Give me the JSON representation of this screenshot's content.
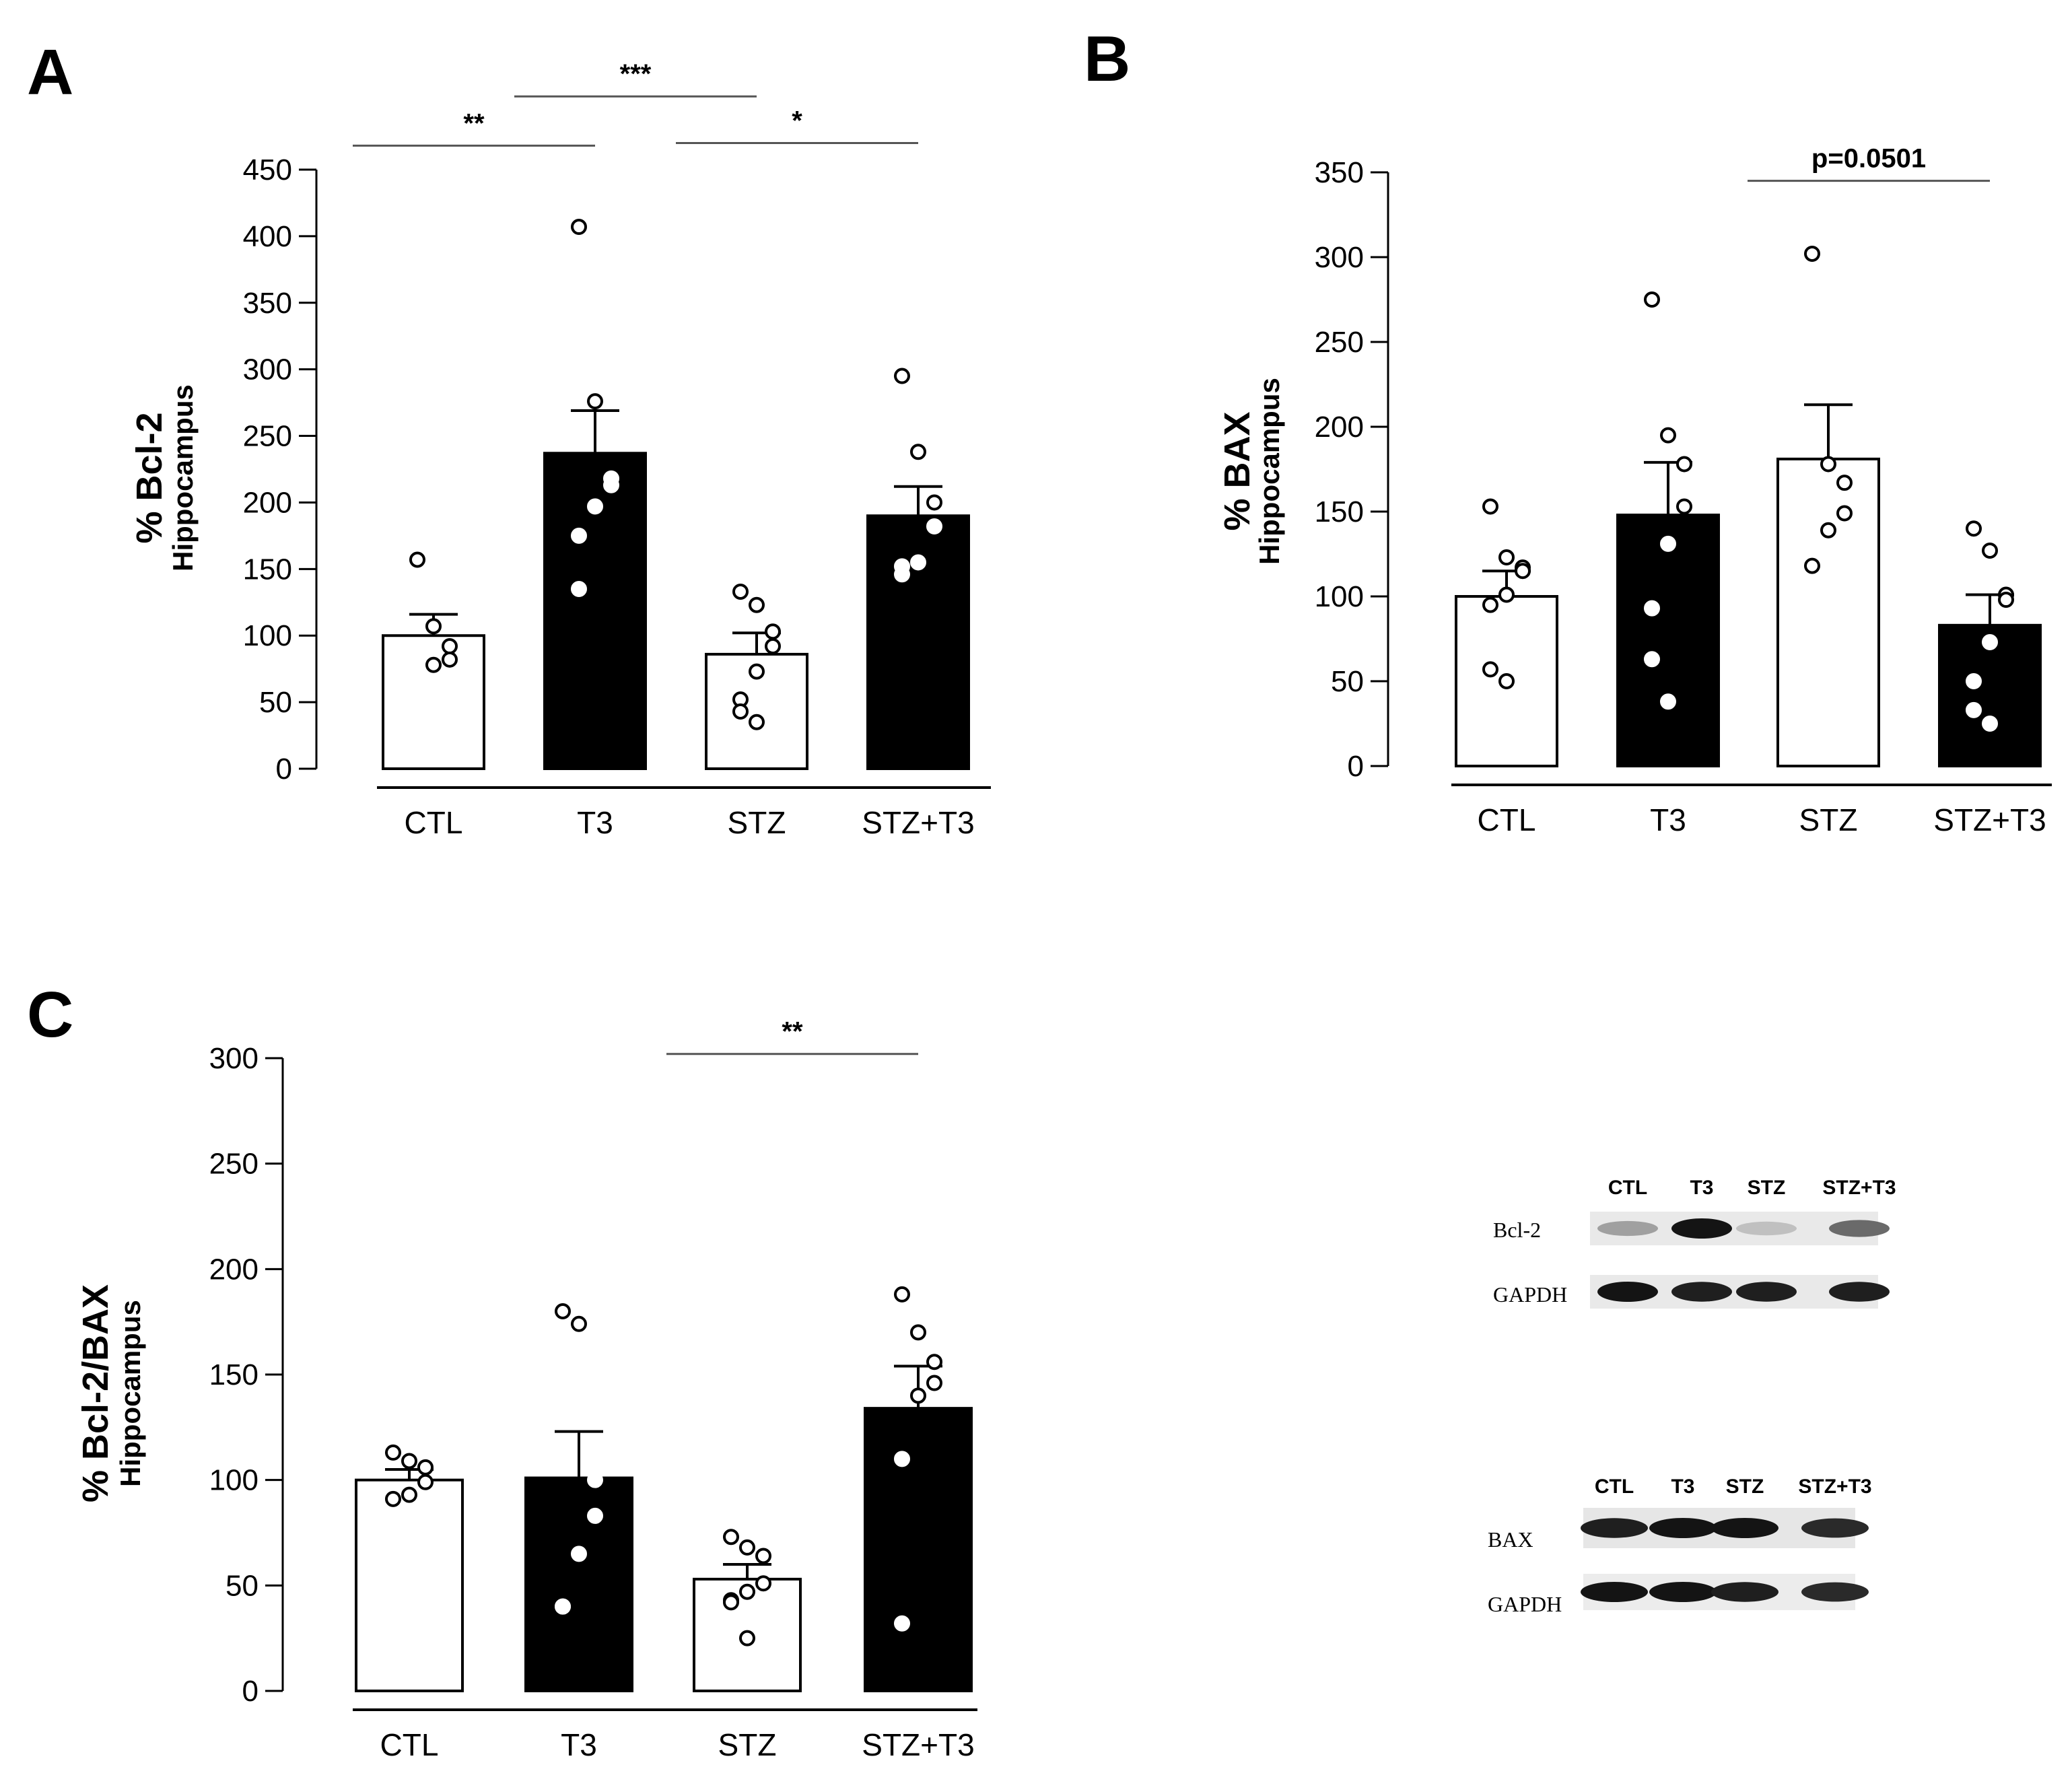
{
  "panels": {
    "A": {
      "letter": "A"
    },
    "B": {
      "letter": "B"
    },
    "C": {
      "letter": "C"
    }
  },
  "chart_data": [
    {
      "id": "A",
      "type": "bar",
      "title": "",
      "ylabel": "% Bcl-2",
      "ylabel_sub": "Hippocampus",
      "categories": [
        "CTL",
        "T3",
        "STZ",
        "STZ+T3"
      ],
      "ylim": [
        0,
        450
      ],
      "yticks": [
        0,
        50,
        100,
        150,
        200,
        250,
        300,
        350,
        400,
        450
      ],
      "values": [
        100,
        237,
        86,
        190
      ],
      "errors": [
        16,
        32,
        16,
        22
      ],
      "fills": [
        "#ffffff",
        "#000000",
        "#ffffff",
        "#000000"
      ],
      "points": [
        [
          157,
          107,
          92,
          82,
          78
        ],
        [
          407,
          276,
          218,
          213,
          197,
          175,
          135
        ],
        [
          133,
          123,
          103,
          92,
          73,
          52,
          43,
          35
        ],
        [
          295,
          238,
          200,
          182,
          155,
          152,
          146
        ]
      ],
      "significance": [
        {
          "from": 0,
          "to": 1,
          "label": "**",
          "level": 468
        },
        {
          "from": 1,
          "to": 2,
          "label": "***",
          "level": 505
        },
        {
          "from": 2,
          "to": 3,
          "label": "*",
          "level": 470
        }
      ]
    },
    {
      "id": "B",
      "type": "bar",
      "title": "",
      "ylabel": "% BAX",
      "ylabel_sub": "Hippocampus",
      "categories": [
        "CTL",
        "T3",
        "STZ",
        "STZ+T3"
      ],
      "ylim": [
        0,
        350
      ],
      "yticks": [
        0,
        50,
        100,
        150,
        200,
        250,
        300,
        350
      ],
      "values": [
        100,
        148,
        181,
        83
      ],
      "errors": [
        15,
        31,
        32,
        18
      ],
      "fills": [
        "#ffffff",
        "#000000",
        "#ffffff",
        "#000000"
      ],
      "points": [
        [
          153,
          123,
          117,
          115,
          101,
          95,
          57,
          50
        ],
        [
          275,
          195,
          178,
          153,
          131,
          93,
          63,
          38
        ],
        [
          302,
          178,
          167,
          149,
          139,
          118
        ],
        [
          140,
          127,
          101,
          98,
          73,
          50,
          33,
          25
        ]
      ],
      "significance": [
        {
          "from": 2,
          "to": 3,
          "label": "p=0.0501",
          "level": 345
        }
      ]
    },
    {
      "id": "C",
      "type": "bar",
      "title": "",
      "ylabel": "% Bcl-2/BAX",
      "ylabel_sub": "Hippocampus",
      "categories": [
        "CTL",
        "T3",
        "STZ",
        "STZ+T3"
      ],
      "ylim": [
        0,
        300
      ],
      "yticks": [
        0,
        50,
        100,
        150,
        200,
        250,
        300
      ],
      "values": [
        100,
        101,
        53,
        134
      ],
      "errors": [
        5,
        22,
        7,
        20
      ],
      "fills": [
        "#ffffff",
        "#000000",
        "#ffffff",
        "#000000"
      ],
      "points": [
        [
          113,
          109,
          106,
          99,
          93,
          91
        ],
        [
          180,
          174,
          100,
          83,
          65,
          40,
          40
        ],
        [
          73,
          68,
          64,
          51,
          47,
          43,
          42,
          25
        ],
        [
          188,
          170,
          156,
          146,
          140,
          110,
          32
        ]
      ],
      "significance": [
        {
          "from": 2,
          "to": 3,
          "label": "**",
          "level": 302
        }
      ]
    }
  ],
  "blots": [
    {
      "id": "blot-bcl2",
      "lanes": [
        "CTL",
        "T3",
        "STZ",
        "STZ+T3"
      ],
      "rows": [
        {
          "label": "Bcl-2",
          "intensity": [
            0.35,
            1.0,
            0.2,
            0.6
          ]
        },
        {
          "label": "GAPDH",
          "intensity": [
            1.0,
            0.95,
            0.95,
            0.95
          ]
        }
      ]
    },
    {
      "id": "blot-bax",
      "lanes": [
        "CTL",
        "T3",
        "STZ",
        "STZ+T3"
      ],
      "rows": [
        {
          "label": "BAX",
          "intensity": [
            0.95,
            1.0,
            1.0,
            0.9
          ]
        },
        {
          "label": "GAPDH",
          "intensity": [
            1.0,
            1.0,
            0.95,
            0.9
          ]
        }
      ]
    }
  ]
}
